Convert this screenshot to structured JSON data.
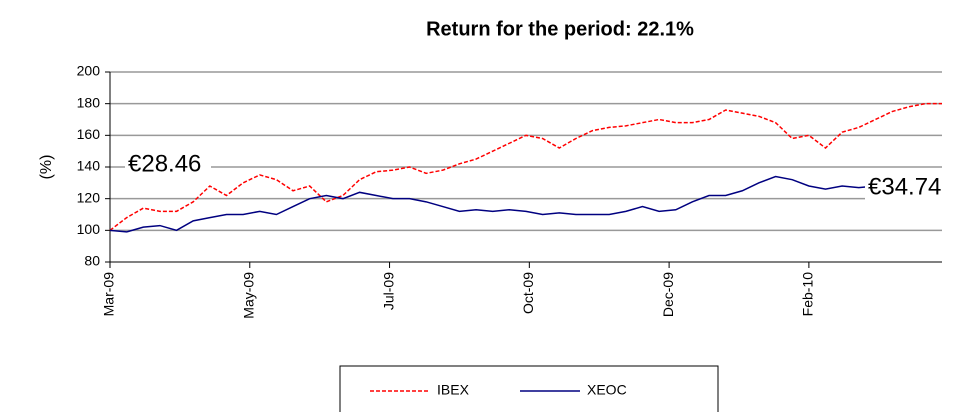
{
  "chart_data": {
    "type": "line",
    "title": "Return for the period: 22.1%",
    "y_label": "(%)",
    "annotations": [
      "€28.46",
      "€34.74"
    ],
    "x": [
      0,
      5,
      10,
      15,
      20,
      25,
      30,
      35,
      40,
      45,
      50,
      55,
      60,
      65,
      70,
      75,
      80,
      85,
      90,
      95,
      100,
      105,
      110,
      115,
      120,
      125,
      130,
      135,
      140,
      145,
      150,
      155,
      160,
      165,
      170,
      175,
      180,
      185,
      190,
      195,
      200,
      205,
      210,
      215,
      220,
      225,
      230,
      235,
      240,
      245,
      250
    ],
    "xlim": [
      0,
      250
    ],
    "xticks": [
      {
        "value": 0,
        "label": "Mar-09"
      },
      {
        "value": 42,
        "label": "May-09"
      },
      {
        "value": 84,
        "label": "Jul-09"
      },
      {
        "value": 126,
        "label": "Oct-09"
      },
      {
        "value": 168,
        "label": "Dec-09"
      },
      {
        "value": 210,
        "label": "Feb-10"
      }
    ],
    "ylim": [
      80,
      200
    ],
    "yticks": [
      80,
      100,
      120,
      140,
      160,
      180,
      200
    ],
    "grid": true,
    "series": [
      {
        "name": "IBEX",
        "color": "#ff0000",
        "dash": true,
        "values": [
          100,
          108,
          114,
          112,
          112,
          118,
          128,
          122,
          130,
          135,
          132,
          125,
          128,
          118,
          122,
          132,
          137,
          138,
          140,
          136,
          138,
          142,
          145,
          150,
          155,
          160,
          158,
          152,
          158,
          163,
          165,
          166,
          168,
          170,
          168,
          168,
          170,
          176,
          174,
          172,
          168,
          158,
          160,
          152,
          162,
          165,
          170,
          175,
          178,
          180,
          180
        ]
      },
      {
        "name": "XEOC",
        "color": "#000080",
        "dash": false,
        "values": [
          100,
          99,
          102,
          103,
          100,
          106,
          108,
          110,
          110,
          112,
          110,
          115,
          120,
          122,
          120,
          124,
          122,
          120,
          120,
          118,
          115,
          112,
          113,
          112,
          113,
          112,
          110,
          111,
          110,
          110,
          110,
          112,
          115,
          112,
          113,
          118,
          122,
          122,
          125,
          130,
          134,
          132,
          128,
          126,
          128,
          127,
          128,
          128,
          125,
          122,
          122
        ]
      }
    ]
  }
}
